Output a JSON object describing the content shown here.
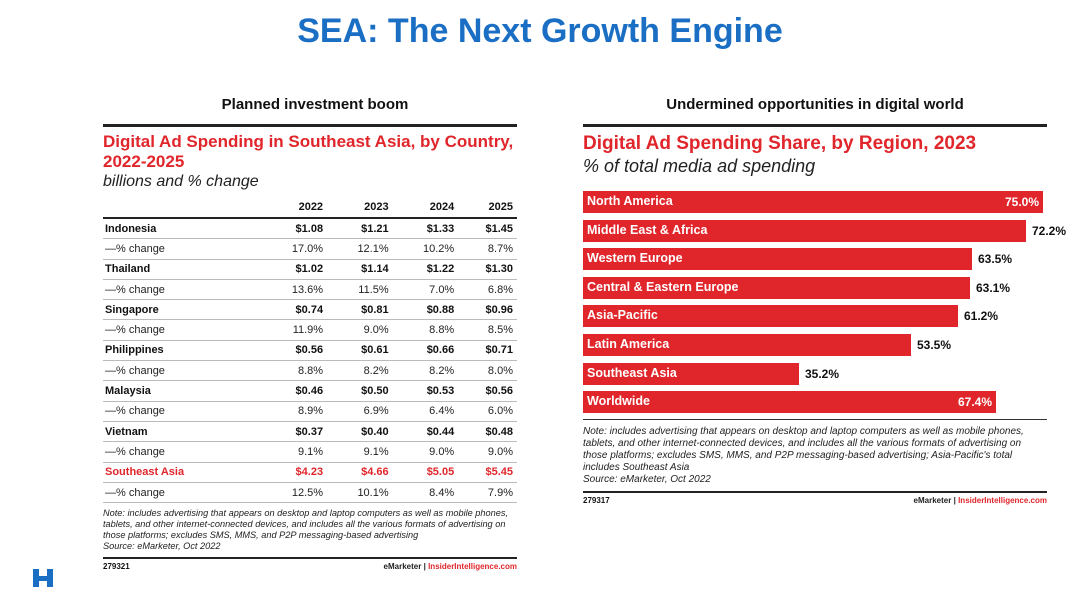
{
  "page": {
    "title": "SEA: The Next Growth Engine",
    "left_subtitle": "Planned investment boom",
    "right_subtitle": "Undermined opportunities in digital world"
  },
  "colors": {
    "title_blue": "#1a6fc4",
    "emarketer_red": "#e0262b"
  },
  "logo": {
    "icon": "h-logo-icon"
  },
  "chart_data": [
    {
      "type": "table",
      "title": "Digital Ad Spending in Southeast Asia, by Country, 2022-2025",
      "subtitle": "billions and % change",
      "columns": [
        "",
        "2022",
        "2023",
        "2024",
        "2025"
      ],
      "rows": [
        {
          "label": "Indonesia",
          "values": [
            "$1.08",
            "$1.21",
            "$1.33",
            "$1.45"
          ],
          "kind": "value"
        },
        {
          "label": "—% change",
          "values": [
            "17.0%",
            "12.1%",
            "10.2%",
            "8.7%"
          ],
          "kind": "change"
        },
        {
          "label": "Thailand",
          "values": [
            "$1.02",
            "$1.14",
            "$1.22",
            "$1.30"
          ],
          "kind": "value"
        },
        {
          "label": "—% change",
          "values": [
            "13.6%",
            "11.5%",
            "7.0%",
            "6.8%"
          ],
          "kind": "change"
        },
        {
          "label": "Singapore",
          "values": [
            "$0.74",
            "$0.81",
            "$0.88",
            "$0.96"
          ],
          "kind": "value"
        },
        {
          "label": "—% change",
          "values": [
            "11.9%",
            "9.0%",
            "8.8%",
            "8.5%"
          ],
          "kind": "change"
        },
        {
          "label": "Philippines",
          "values": [
            "$0.56",
            "$0.61",
            "$0.66",
            "$0.71"
          ],
          "kind": "value"
        },
        {
          "label": "—% change",
          "values": [
            "8.8%",
            "8.2%",
            "8.2%",
            "8.0%"
          ],
          "kind": "change"
        },
        {
          "label": "Malaysia",
          "values": [
            "$0.46",
            "$0.50",
            "$0.53",
            "$0.56"
          ],
          "kind": "value"
        },
        {
          "label": "—% change",
          "values": [
            "8.9%",
            "6.9%",
            "6.4%",
            "6.0%"
          ],
          "kind": "change"
        },
        {
          "label": "Vietnam",
          "values": [
            "$0.37",
            "$0.40",
            "$0.44",
            "$0.48"
          ],
          "kind": "value"
        },
        {
          "label": "—% change",
          "values": [
            "9.1%",
            "9.1%",
            "9.0%",
            "9.0%"
          ],
          "kind": "change"
        },
        {
          "label": "Southeast Asia",
          "values": [
            "$4.23",
            "$4.66",
            "$5.05",
            "$5.45"
          ],
          "kind": "total"
        },
        {
          "label": "—% change",
          "values": [
            "12.5%",
            "10.1%",
            "8.4%",
            "7.9%"
          ],
          "kind": "change"
        }
      ],
      "note": "Note: includes advertising that appears on desktop and laptop computers as well as mobile phones, tablets, and other internet-connected devices, and includes all the various formats of advertising on those platforms; excludes SMS, MMS, and P2P messaging-based advertising",
      "source": "Source: eMarketer, Oct 2022",
      "chart_id": "279321",
      "brand_left": "eMarketer",
      "brand_sep": "|",
      "brand_right": "InsiderIntelligence.com"
    },
    {
      "type": "bar",
      "orientation": "horizontal",
      "title": "Digital Ad Spending Share, by Region, 2023",
      "subtitle": "% of total media ad spending",
      "categories": [
        "North America",
        "Middle East & Africa",
        "Western Europe",
        "Central & Eastern Europe",
        "Asia-Pacific",
        "Latin America",
        "Southeast Asia",
        "Worldwide"
      ],
      "values": [
        75.0,
        72.2,
        63.5,
        63.1,
        61.2,
        53.5,
        35.2,
        67.4
      ],
      "value_labels": [
        "75.0%",
        "72.2%",
        "63.5%",
        "63.1%",
        "61.2%",
        "53.5%",
        "35.2%",
        "67.4%"
      ],
      "xlim": [
        0,
        75
      ],
      "note": "Note: includes advertising that appears on desktop and laptop computers as well as mobile phones, tablets, and other internet-connected devices, and includes all the various formats of advertising on those platforms; excludes SMS, MMS, and P2P messaging-based advertising; Asia-Pacific's total includes Southeast Asia",
      "source": "Source: eMarketer, Oct 2022",
      "chart_id": "279317",
      "brand_left": "eMarketer",
      "brand_sep": "|",
      "brand_right": "InsiderIntelligence.com"
    }
  ]
}
